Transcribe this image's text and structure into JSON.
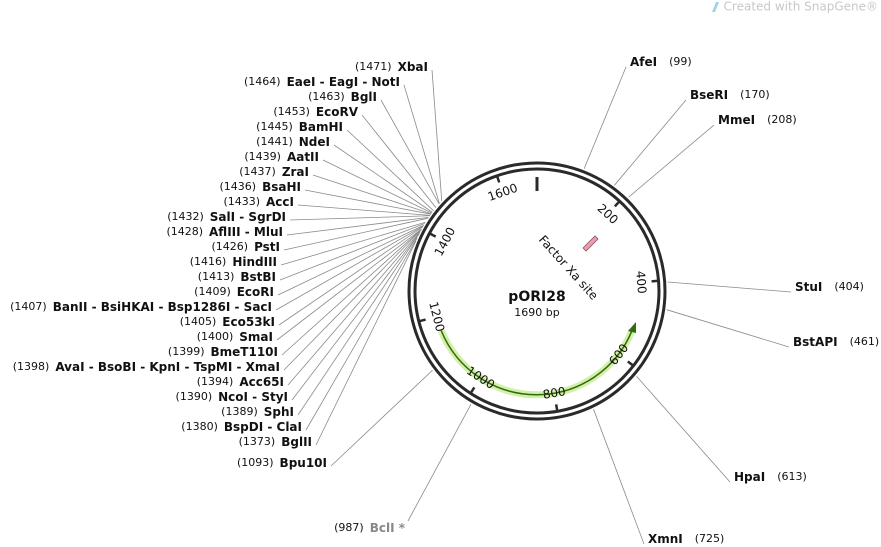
{
  "watermark": "Created with SnapGene®",
  "plasmid": {
    "name": "pORI28",
    "length": {
      "value": 1690,
      "label": "1690 bp"
    }
  },
  "ticks": [
    200,
    400,
    600,
    800,
    1000,
    1200,
    1400,
    1600
  ],
  "features": [
    {
      "name": "Factor Xa site",
      "color": "#e8a0b0"
    }
  ],
  "sites": [
    {
      "name": "AfeI",
      "position": {
        "value": 99,
        "label": "(99)"
      }
    },
    {
      "name": "BseRI",
      "position": {
        "value": 170,
        "label": "(170)"
      }
    },
    {
      "name": "MmeI",
      "position": {
        "value": 208,
        "label": "(208)"
      }
    },
    {
      "name": "StuI",
      "position": {
        "value": 404,
        "label": "(404)"
      }
    },
    {
      "name": "BstAPI",
      "position": {
        "value": 461,
        "label": "(461)"
      }
    },
    {
      "name": "HpaI",
      "position": {
        "value": 613,
        "label": "(613)"
      }
    },
    {
      "name": "XmnI",
      "position": {
        "value": 725,
        "label": "(725)"
      }
    },
    {
      "name": "BclI *",
      "position": {
        "value": 987,
        "label": "(987)"
      },
      "color": "#888888"
    },
    {
      "name": "XbaI",
      "position": {
        "value": 1471,
        "label": "(1471)"
      }
    },
    {
      "name": "EaeI - EagI - NotI",
      "position": {
        "value": 1464,
        "label": "(1464)"
      }
    },
    {
      "name": "BglI",
      "position": {
        "value": 1463,
        "label": "(1463)"
      }
    },
    {
      "name": "EcoRV",
      "position": {
        "value": 1453,
        "label": "(1453)"
      }
    },
    {
      "name": "BamHI",
      "position": {
        "value": 1445,
        "label": "(1445)"
      }
    },
    {
      "name": "NdeI",
      "position": {
        "value": 1441,
        "label": "(1441)"
      }
    },
    {
      "name": "AatII",
      "position": {
        "value": 1439,
        "label": "(1439)"
      }
    },
    {
      "name": "ZraI",
      "position": {
        "value": 1437,
        "label": "(1437)"
      }
    },
    {
      "name": "BsaHI",
      "position": {
        "value": 1436,
        "label": "(1436)"
      }
    },
    {
      "name": "AccI",
      "position": {
        "value": 1433,
        "label": "(1433)"
      }
    },
    {
      "name": "SalI - SgrDI",
      "position": {
        "value": 1432,
        "label": "(1432)"
      }
    },
    {
      "name": "AflIII - MluI",
      "position": {
        "value": 1428,
        "label": "(1428)"
      }
    },
    {
      "name": "PstI",
      "position": {
        "value": 1426,
        "label": "(1426)"
      }
    },
    {
      "name": "HindIII",
      "position": {
        "value": 1416,
        "label": "(1416)"
      }
    },
    {
      "name": "BstBI",
      "position": {
        "value": 1413,
        "label": "(1413)"
      }
    },
    {
      "name": "EcoRI",
      "position": {
        "value": 1409,
        "label": "(1409)"
      }
    },
    {
      "name": "BanII - BsiHKAI - Bsp1286I - SacI",
      "position": {
        "value": 1407,
        "label": "(1407)"
      }
    },
    {
      "name": "Eco53kI",
      "position": {
        "value": 1405,
        "label": "(1405)"
      }
    },
    {
      "name": "SmaI",
      "position": {
        "value": 1400,
        "label": "(1400)"
      }
    },
    {
      "name": "BmeT110I",
      "position": {
        "value": 1399,
        "label": "(1399)"
      }
    },
    {
      "name": "AvaI - BsoBI - KpnI - TspMI - XmaI",
      "position": {
        "value": 1398,
        "label": "(1398)"
      }
    },
    {
      "name": "Acc65I",
      "position": {
        "value": 1394,
        "label": "(1394)"
      }
    },
    {
      "name": "NcoI - StyI",
      "position": {
        "value": 1390,
        "label": "(1390)"
      }
    },
    {
      "name": "SphI",
      "position": {
        "value": 1389,
        "label": "(1389)"
      }
    },
    {
      "name": "BspDI - ClaI",
      "position": {
        "value": 1380,
        "label": "(1380)"
      }
    },
    {
      "name": "BglII",
      "position": {
        "value": 1373,
        "label": "(1373)"
      }
    },
    {
      "name": "Bpu10I",
      "position": {
        "value": 1093,
        "label": "(1093)"
      }
    }
  ]
}
